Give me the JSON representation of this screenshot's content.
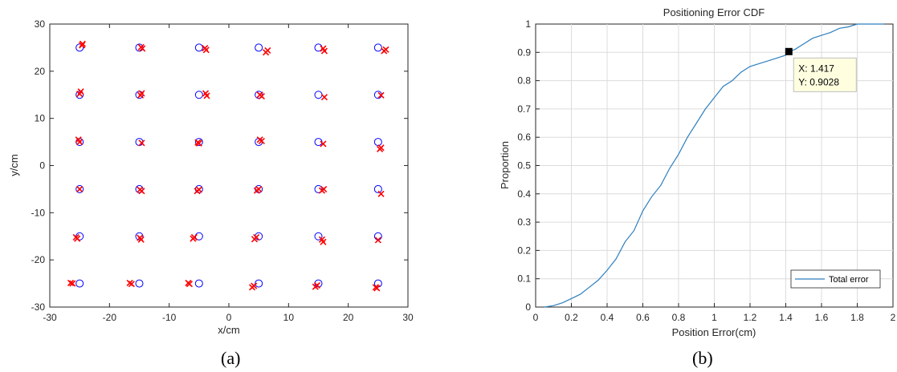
{
  "chart_data": [
    {
      "type": "scatter",
      "xlabel": "x/cm",
      "ylabel": "y/cm",
      "xlim": [
        -30,
        30
      ],
      "ylim": [
        -30,
        30
      ],
      "xticks": [
        -30,
        -20,
        -10,
        0,
        10,
        20,
        30
      ],
      "yticks": [
        -30,
        -20,
        -10,
        0,
        10,
        20,
        30
      ],
      "grid": false,
      "caption": "(a)",
      "series": [
        {
          "marker": "o",
          "color": "#0000ff",
          "points": [
            [
              -25,
              25
            ],
            [
              -15,
              25
            ],
            [
              -5,
              25
            ],
            [
              5,
              25
            ],
            [
              15,
              25
            ],
            [
              25,
              25
            ],
            [
              -25,
              15
            ],
            [
              -15,
              15
            ],
            [
              -5,
              15
            ],
            [
              5,
              15
            ],
            [
              15,
              15
            ],
            [
              25,
              15
            ],
            [
              -25,
              5
            ],
            [
              -15,
              5
            ],
            [
              -5,
              5
            ],
            [
              5,
              5
            ],
            [
              15,
              5
            ],
            [
              25,
              5
            ],
            [
              -25,
              -5
            ],
            [
              -15,
              -5
            ],
            [
              -5,
              -5
            ],
            [
              5,
              -5
            ],
            [
              15,
              -5
            ],
            [
              25,
              -5
            ],
            [
              -25,
              -15
            ],
            [
              -15,
              -15
            ],
            [
              -5,
              -15
            ],
            [
              5,
              -15
            ],
            [
              15,
              -15
            ],
            [
              25,
              -15
            ],
            [
              -25,
              -25
            ],
            [
              -15,
              -25
            ],
            [
              -5,
              -25
            ],
            [
              5,
              -25
            ],
            [
              15,
              -25
            ],
            [
              25,
              -25
            ]
          ]
        },
        {
          "marker": "x",
          "color": "#ff0000",
          "points": [
            [
              -24.5,
              25.8
            ],
            [
              -24.6,
              25.5
            ],
            [
              -14.5,
              24.8
            ],
            [
              -14.7,
              25.1
            ],
            [
              -3.8,
              24.5
            ],
            [
              -4.0,
              24.9
            ],
            [
              6.2,
              24.0
            ],
            [
              6.5,
              24.4
            ],
            [
              16.0,
              24.3
            ],
            [
              15.8,
              24.8
            ],
            [
              26.0,
              24.3
            ],
            [
              26.3,
              24.6
            ],
            [
              -24.8,
              15.7
            ],
            [
              -25.0,
              15.2
            ],
            [
              -14.6,
              15.3
            ],
            [
              -14.8,
              14.9
            ],
            [
              -3.7,
              14.8
            ],
            [
              -3.9,
              15.3
            ],
            [
              5.5,
              14.7
            ],
            [
              5.2,
              15.0
            ],
            [
              16.0,
              14.5
            ],
            [
              25.5,
              14.9
            ],
            [
              -25.2,
              5.5
            ],
            [
              -25.0,
              5.0
            ],
            [
              -14.6,
              4.8
            ],
            [
              -5.0,
              4.7
            ],
            [
              -5.2,
              4.9
            ],
            [
              5.5,
              5.2
            ],
            [
              5.2,
              5.5
            ],
            [
              15.8,
              4.6
            ],
            [
              25.5,
              3.8
            ],
            [
              25.3,
              3.5
            ],
            [
              -25.0,
              -5.0
            ],
            [
              -14.6,
              -5.4
            ],
            [
              -14.9,
              -5.1
            ],
            [
              -5.3,
              -5.4
            ],
            [
              -5.0,
              -5.1
            ],
            [
              4.7,
              -5.3
            ],
            [
              5.0,
              -5.0
            ],
            [
              15.6,
              -5.3
            ],
            [
              15.9,
              -5.0
            ],
            [
              25.5,
              -6.0
            ],
            [
              -25.6,
              -15.2
            ],
            [
              -25.4,
              -15.5
            ],
            [
              -14.7,
              -15.7
            ],
            [
              -14.9,
              -15.3
            ],
            [
              -6.0,
              -15.5
            ],
            [
              -5.8,
              -15.2
            ],
            [
              4.3,
              -15.6
            ],
            [
              4.6,
              -15.2
            ],
            [
              15.8,
              -16.2
            ],
            [
              15.6,
              -15.7
            ],
            [
              25.0,
              -15.8
            ],
            [
              -26.5,
              -24.9
            ],
            [
              -26.2,
              -25.0
            ],
            [
              -16.6,
              -24.9
            ],
            [
              -16.3,
              -25.1
            ],
            [
              -6.8,
              -24.9
            ],
            [
              -6.6,
              -25.1
            ],
            [
              3.9,
              -25.8
            ],
            [
              4.2,
              -25.5
            ],
            [
              14.5,
              -25.7
            ],
            [
              14.8,
              -25.4
            ],
            [
              24.8,
              -26.0
            ],
            [
              24.6,
              -25.8
            ]
          ]
        }
      ]
    },
    {
      "type": "line",
      "title": "Positioning Error CDF",
      "xlabel": "Position Error(cm)",
      "ylabel": "Proportion",
      "xlim": [
        0,
        2
      ],
      "ylim": [
        0,
        1
      ],
      "xticks": [
        0,
        0.2,
        0.4,
        0.6,
        0.8,
        1,
        1.2,
        1.4,
        1.6,
        1.8,
        2
      ],
      "xtick_labels": [
        "0",
        "0.2",
        "0.4",
        "0.6",
        "0.8",
        "1",
        "1.2",
        "1.4",
        "1.6",
        "1.8",
        "2"
      ],
      "yticks": [
        0,
        0.1,
        0.2,
        0.3,
        0.4,
        0.5,
        0.6,
        0.7,
        0.8,
        0.9,
        1
      ],
      "grid": true,
      "legend": {
        "location": "bottom-right",
        "entries": [
          "Total error"
        ]
      },
      "color": "#2e7fbf",
      "caption": "(b)",
      "series": [
        {
          "name": "Total error",
          "x": [
            0.05,
            0.1,
            0.15,
            0.2,
            0.25,
            0.3,
            0.35,
            0.4,
            0.45,
            0.5,
            0.55,
            0.6,
            0.65,
            0.7,
            0.75,
            0.8,
            0.85,
            0.9,
            0.95,
            1.0,
            1.05,
            1.1,
            1.15,
            1.2,
            1.25,
            1.3,
            1.35,
            1.4,
            1.417,
            1.45,
            1.5,
            1.55,
            1.6,
            1.65,
            1.7,
            1.75,
            1.8,
            1.85,
            1.9,
            1.95
          ],
          "y": [
            0.0,
            0.005,
            0.015,
            0.03,
            0.045,
            0.07,
            0.095,
            0.13,
            0.17,
            0.23,
            0.27,
            0.34,
            0.39,
            0.43,
            0.49,
            0.54,
            0.6,
            0.65,
            0.7,
            0.74,
            0.78,
            0.8,
            0.83,
            0.85,
            0.86,
            0.87,
            0.88,
            0.89,
            0.9028,
            0.91,
            0.93,
            0.95,
            0.96,
            0.97,
            0.985,
            0.99,
            1.0,
            1.0,
            1.0,
            1.0
          ]
        }
      ],
      "datatip": {
        "x": 1.417,
        "y": 0.9028,
        "label_x": "X: 1.417",
        "label_y": "Y: 0.9028"
      }
    }
  ]
}
